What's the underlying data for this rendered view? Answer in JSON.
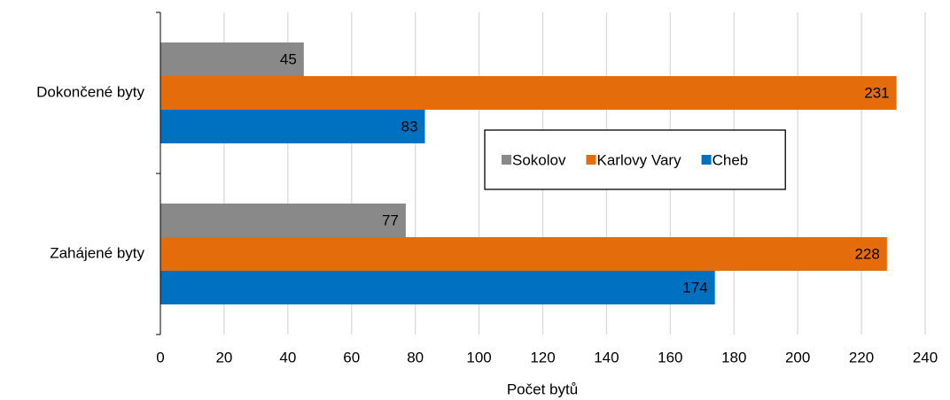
{
  "chart_data": {
    "type": "hbar",
    "categories": [
      "Dokončené byty",
      "Zahájené byty"
    ],
    "series": [
      {
        "name": "Sokolov",
        "color": "#898989",
        "values": [
          45,
          77
        ]
      },
      {
        "name": "Karlovy Vary",
        "color": "#e46c0a",
        "values": [
          231,
          228
        ]
      },
      {
        "name": "Cheb",
        "color": "#0070c0",
        "values": [
          83,
          174
        ]
      }
    ],
    "xlim": [
      0,
      240
    ],
    "xticks": [
      0,
      20,
      40,
      60,
      80,
      100,
      120,
      140,
      160,
      180,
      200,
      220,
      240
    ],
    "xlabel": "Počet bytů",
    "grid": true,
    "legend": "right"
  }
}
